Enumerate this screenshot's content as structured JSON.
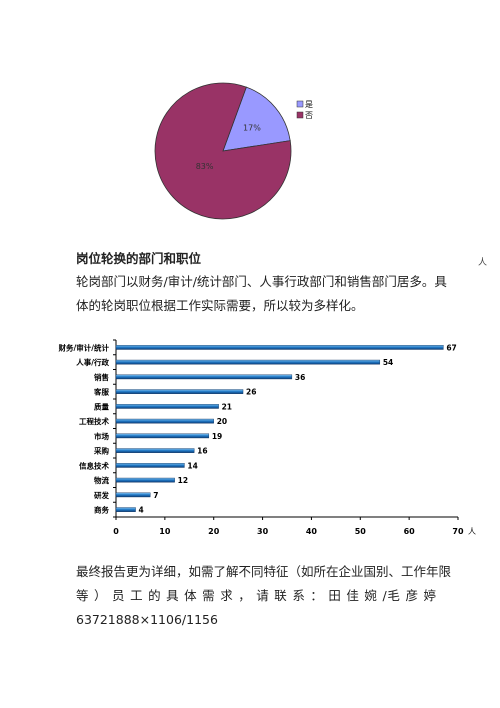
{
  "pie_chart": {
    "type": "pie",
    "slices": [
      {
        "label": "是",
        "value": 17,
        "value_label": "17%",
        "color": "#9999ff"
      },
      {
        "label": "否",
        "value": 83,
        "value_label": "83%",
        "color": "#993366"
      }
    ],
    "legend_position": "right"
  },
  "section": {
    "heading": "岗位轮换的部门和职位",
    "margin_note": "人",
    "paragraph1_lines": [
      "轮岗部门以财务/审计/统计部门、人事行政部门和销售部门居多。具",
      "体的轮岗职位根据工作实际需要，所以较为多样化。"
    ]
  },
  "chart_data": {
    "type": "bar",
    "orientation": "horizontal",
    "categories": [
      "财务/审计/统计",
      "人事/行政",
      "销售",
      "客服",
      "质量",
      "工程技术",
      "市场",
      "采购",
      "信息技术",
      "物流",
      "研发",
      "商务"
    ],
    "values": [
      67,
      54,
      36,
      26,
      21,
      20,
      19,
      16,
      14,
      12,
      7,
      4
    ],
    "value_labels": [
      "67",
      "54",
      "36",
      "26",
      "21",
      "20",
      "19",
      "16",
      "14",
      "12",
      "7",
      "4"
    ],
    "xticks": [
      "0",
      "10",
      "20",
      "30",
      "40",
      "50",
      "60",
      "70"
    ],
    "xlim": [
      0,
      70
    ],
    "unit": "人",
    "bar_color": "#1f77c4"
  },
  "footer": {
    "lines": [
      "最终报告更为详细，如需了解不同特征（如所在企业国别、工作年限",
      "等 ） 员 工 的 具 体 需 求 ， 请 联 系 ： 田 佳 婉 /毛 彦 婷",
      "63721888×1106/1156"
    ]
  }
}
